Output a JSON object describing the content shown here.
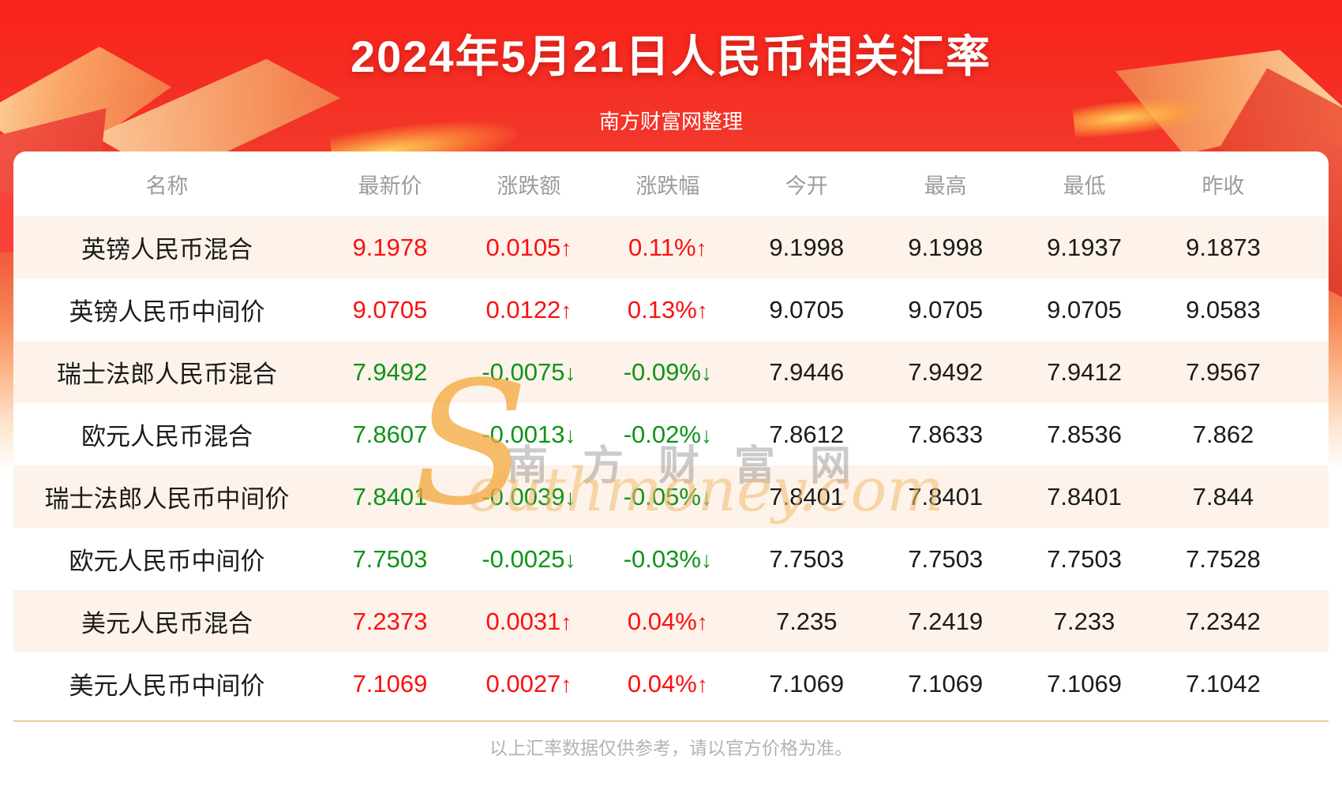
{
  "header": {
    "title": "2024年5月21日人民币相关汇率",
    "subtitle": "南方财富网整理"
  },
  "watermark": {
    "initial": "S",
    "cn_text": "南方财富网",
    "en_text": "outhmoney.com"
  },
  "chart_data": {
    "type": "table",
    "title": "2024年5月21日人民币相关汇率",
    "columns": [
      "名称",
      "最新价",
      "涨跌额",
      "涨跌幅",
      "今开",
      "最高",
      "最低",
      "昨收"
    ],
    "rows": [
      {
        "name": "英镑人民币混合",
        "last": "9.1978",
        "change": "0.0105",
        "change_pct": "0.11%",
        "direction": "up",
        "open": "9.1998",
        "high": "9.1998",
        "low": "9.1937",
        "prev_close": "9.1873"
      },
      {
        "name": "英镑人民币中间价",
        "last": "9.0705",
        "change": "0.0122",
        "change_pct": "0.13%",
        "direction": "up",
        "open": "9.0705",
        "high": "9.0705",
        "low": "9.0705",
        "prev_close": "9.0583"
      },
      {
        "name": "瑞士法郎人民币混合",
        "last": "7.9492",
        "change": "-0.0075",
        "change_pct": "-0.09%",
        "direction": "down",
        "open": "7.9446",
        "high": "7.9492",
        "low": "7.9412",
        "prev_close": "7.9567"
      },
      {
        "name": "欧元人民币混合",
        "last": "7.8607",
        "change": "-0.0013",
        "change_pct": "-0.02%",
        "direction": "down",
        "open": "7.8612",
        "high": "7.8633",
        "low": "7.8536",
        "prev_close": "7.862"
      },
      {
        "name": "瑞士法郎人民币中间价",
        "last": "7.8401",
        "change": "-0.0039",
        "change_pct": "-0.05%",
        "direction": "down",
        "open": "7.8401",
        "high": "7.8401",
        "low": "7.8401",
        "prev_close": "7.844"
      },
      {
        "name": "欧元人民币中间价",
        "last": "7.7503",
        "change": "-0.0025",
        "change_pct": "-0.03%",
        "direction": "down",
        "open": "7.7503",
        "high": "7.7503",
        "low": "7.7503",
        "prev_close": "7.7528"
      },
      {
        "name": "美元人民币混合",
        "last": "7.2373",
        "change": "0.0031",
        "change_pct": "0.04%",
        "direction": "up",
        "open": "7.235",
        "high": "7.2419",
        "low": "7.233",
        "prev_close": "7.2342"
      },
      {
        "name": "美元人民币中间价",
        "last": "7.1069",
        "change": "0.0027",
        "change_pct": "0.04%",
        "direction": "up",
        "open": "7.1069",
        "high": "7.1069",
        "low": "7.1069",
        "prev_close": "7.1042"
      }
    ]
  },
  "arrows": {
    "up": "↑",
    "down": "↓"
  },
  "colors": {
    "up": "#fb1010",
    "down": "#0f9318",
    "banner_red": "#fa231b",
    "row_alt": "#fdf3ea",
    "divider": "#f3c89d",
    "header_text": "#9c9c9c"
  },
  "footer": {
    "disclaimer": "以上汇率数据仅供参考，请以官方价格为准。"
  }
}
